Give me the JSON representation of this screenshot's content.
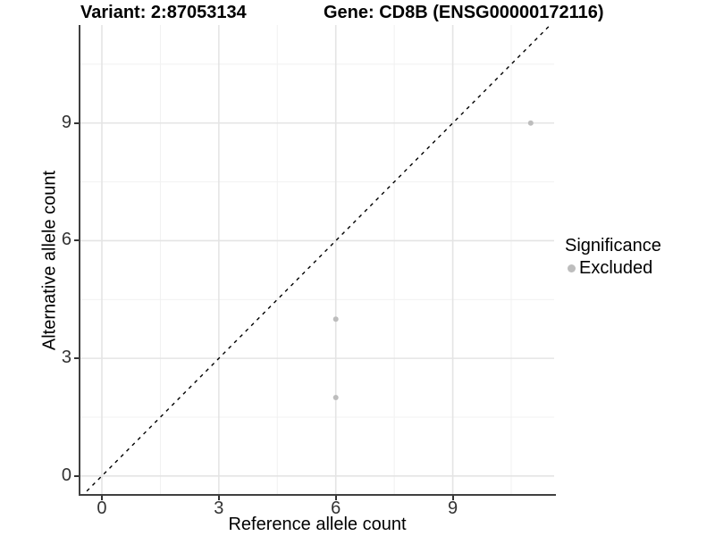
{
  "titles": {
    "variant": "Variant: 2:87053134",
    "gene": "Gene: CD8B (ENSG00000172116)"
  },
  "chart_data": {
    "type": "scatter",
    "xlabel": "Reference allele count",
    "ylabel": "Alternative allele count",
    "xlim": [
      -0.55,
      11.6
    ],
    "ylim": [
      -0.46,
      11.5
    ],
    "x_ticks": [
      0,
      3,
      6,
      9
    ],
    "y_ticks": [
      0,
      3,
      6,
      9
    ],
    "x_minor_ticks": [
      1.5,
      4.5,
      7.5,
      10.5
    ],
    "y_minor_ticks": [
      1.5,
      4.5,
      7.5,
      10.5
    ],
    "grid": "on",
    "identity_line": {
      "slope": 1,
      "intercept": 0,
      "style": "dashed",
      "color": "#000000"
    },
    "series": [
      {
        "name": "Excluded",
        "color": "#bdbdbd",
        "points": [
          [
            6,
            2
          ],
          [
            6,
            4
          ],
          [
            11,
            9
          ]
        ]
      }
    ],
    "legend": {
      "title": "Significance",
      "position": "right",
      "entries": [
        {
          "label": "Excluded",
          "color": "#bdbdbd"
        }
      ]
    }
  },
  "colors": {
    "grid_major": "#e4e4e4",
    "grid_minor": "#f1f1f1",
    "axis_line": "#404040",
    "tick_text": "#333333",
    "point": "#bdbdbd"
  }
}
